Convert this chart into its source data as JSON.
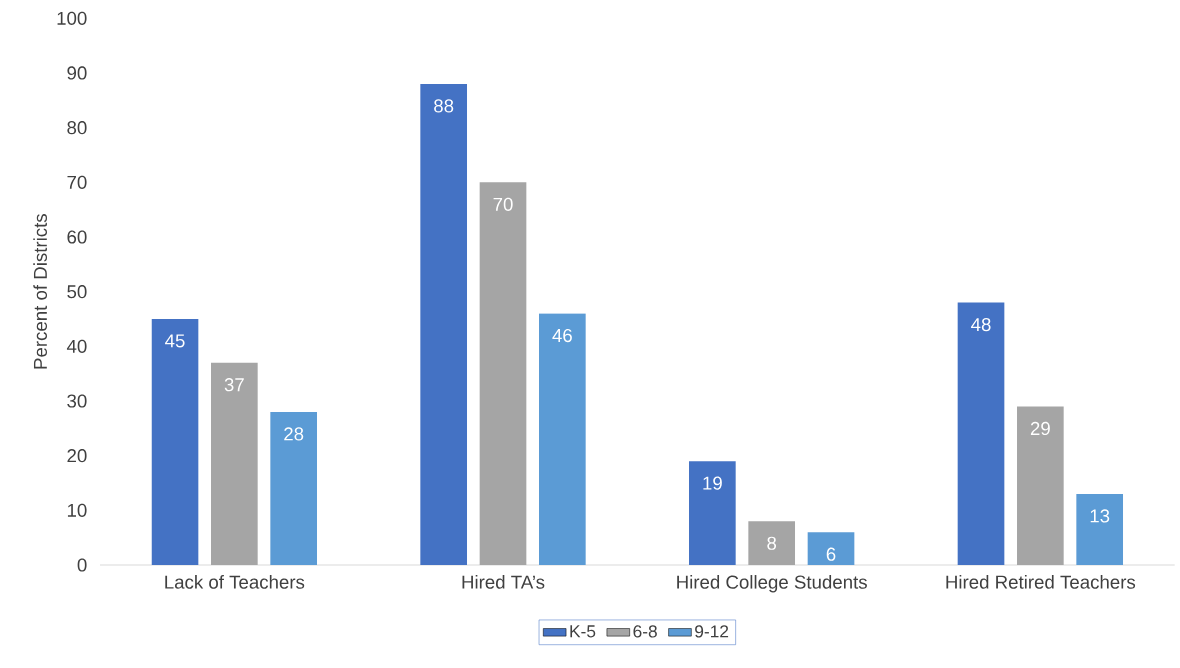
{
  "chart_data": {
    "type": "bar",
    "categories": [
      "Lack of Teachers",
      "Hired TA’s",
      "Hired College Students",
      "Hired Retired Teachers"
    ],
    "ylabel": "Percent of Districts",
    "ylim": [
      0,
      100
    ],
    "yticks": [
      0,
      10,
      20,
      30,
      40,
      50,
      60,
      70,
      80,
      90,
      100
    ],
    "series": [
      {
        "name": "K-5",
        "color": "#4472c4",
        "values": [
          45,
          88,
          19,
          48
        ]
      },
      {
        "name": "6-8",
        "color": "#a5a5a5",
        "values": [
          37,
          70,
          8,
          29
        ]
      },
      {
        "name": "9-12",
        "color": "#5b9bd5",
        "values": [
          28,
          46,
          6,
          13
        ]
      }
    ],
    "data_labels": true,
    "legend": "bottom"
  }
}
